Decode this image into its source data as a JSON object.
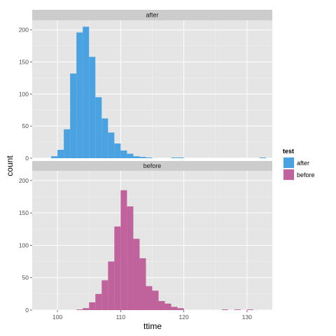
{
  "chart_data": {
    "type": "bar",
    "subtype": "faceted-histogram",
    "xlabel": "ttime",
    "ylabel": "count",
    "xlim": [
      96,
      134
    ],
    "ylim": [
      0,
      215
    ],
    "x_ticks": [
      100,
      110,
      120,
      130
    ],
    "y_ticks": [
      0,
      50,
      100,
      150,
      200
    ],
    "binwidth": 1,
    "grid": true,
    "legend": {
      "title": "test",
      "position": "right",
      "entries": [
        {
          "label": "after",
          "color": "#4aa3e0"
        },
        {
          "label": "before",
          "color": "#c0629b"
        }
      ]
    },
    "facets": [
      {
        "label": "after",
        "color": "#4aa3e0",
        "bins": [
          {
            "x": 99.5,
            "count": 3
          },
          {
            "x": 100.5,
            "count": 13
          },
          {
            "x": 101.5,
            "count": 45
          },
          {
            "x": 102.5,
            "count": 132
          },
          {
            "x": 103.5,
            "count": 196
          },
          {
            "x": 104.5,
            "count": 205
          },
          {
            "x": 105.5,
            "count": 158
          },
          {
            "x": 106.5,
            "count": 95
          },
          {
            "x": 107.5,
            "count": 62
          },
          {
            "x": 108.5,
            "count": 40
          },
          {
            "x": 109.5,
            "count": 23
          },
          {
            "x": 110.5,
            "count": 12
          },
          {
            "x": 111.5,
            "count": 7
          },
          {
            "x": 112.5,
            "count": 3
          },
          {
            "x": 113.5,
            "count": 2
          },
          {
            "x": 114.5,
            "count": 1
          },
          {
            "x": 118.5,
            "count": 1
          },
          {
            "x": 119.5,
            "count": 1
          },
          {
            "x": 132.5,
            "count": 1
          }
        ]
      },
      {
        "label": "before",
        "color": "#c0629b",
        "bins": [
          {
            "x": 103.5,
            "count": 1
          },
          {
            "x": 104.5,
            "count": 3
          },
          {
            "x": 105.5,
            "count": 12
          },
          {
            "x": 106.5,
            "count": 25
          },
          {
            "x": 107.5,
            "count": 46
          },
          {
            "x": 108.5,
            "count": 75
          },
          {
            "x": 109.5,
            "count": 129
          },
          {
            "x": 110.5,
            "count": 185
          },
          {
            "x": 111.5,
            "count": 160
          },
          {
            "x": 112.5,
            "count": 110
          },
          {
            "x": 113.5,
            "count": 80
          },
          {
            "x": 114.5,
            "count": 37
          },
          {
            "x": 115.5,
            "count": 30
          },
          {
            "x": 116.5,
            "count": 14
          },
          {
            "x": 117.5,
            "count": 10
          },
          {
            "x": 118.5,
            "count": 5
          },
          {
            "x": 119.5,
            "count": 3
          },
          {
            "x": 126.5,
            "count": 1
          },
          {
            "x": 128.5,
            "count": 1
          },
          {
            "x": 130.5,
            "count": 1
          }
        ]
      }
    ]
  },
  "colors": {
    "panel_background": "#e5e5e5",
    "grid_major": "#ffffff",
    "strip_background": "#cccccc"
  }
}
